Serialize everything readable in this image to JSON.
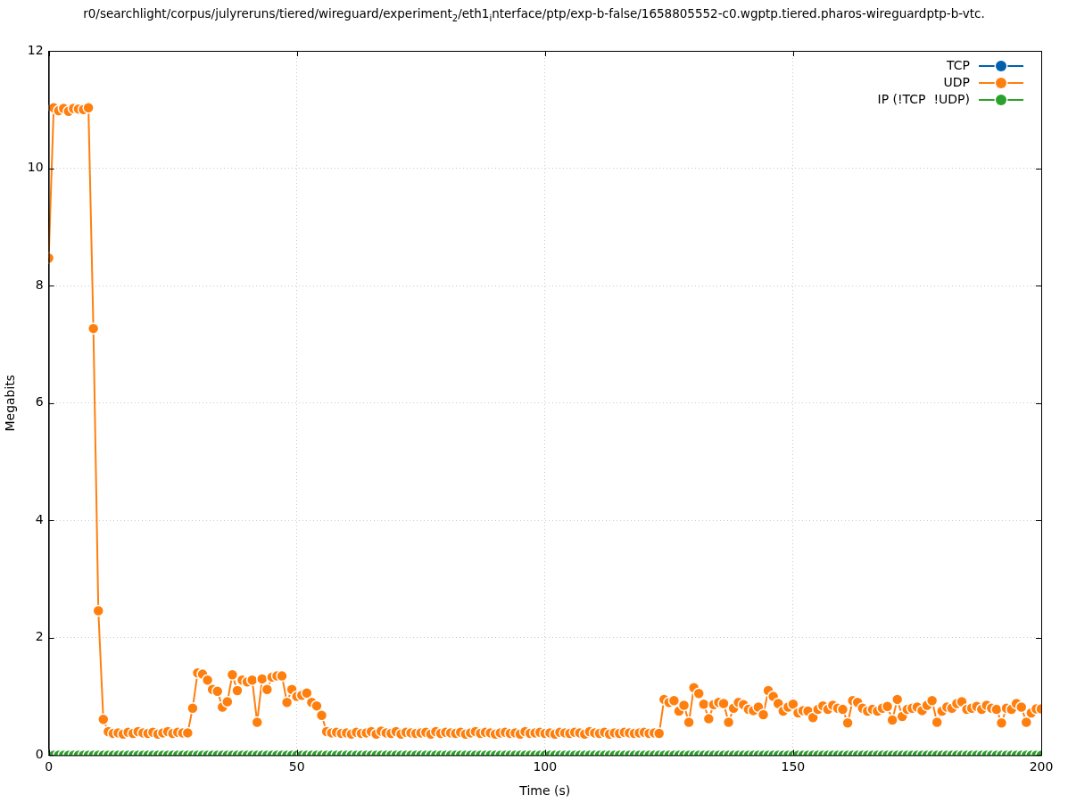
{
  "chart_data": {
    "type": "line",
    "title": "r0/searchlight/corpus/julyreruns/tiered/wireguard/experiment$_{2}$/eth1$_{i}$nterface/ptp/exp-b-false/1658805552-c0.wgptp.tiered.pharos-wireguardptp-b-vtc.",
    "xlabel": "Time (s)",
    "ylabel": "Megabits",
    "x": [
      0,
      1,
      2,
      3,
      4,
      5,
      6,
      7,
      8,
      9,
      10,
      11,
      12,
      13,
      14,
      15,
      16,
      17,
      18,
      19,
      20,
      21,
      22,
      23,
      24,
      25,
      26,
      27,
      28,
      29,
      30,
      31,
      32,
      33,
      34,
      35,
      36,
      37,
      38,
      39,
      40,
      41,
      42,
      43,
      44,
      45,
      46,
      47,
      48,
      49,
      50,
      51,
      52,
      53,
      54,
      55,
      56,
      57,
      58,
      59,
      60,
      61,
      62,
      63,
      64,
      65,
      66,
      67,
      68,
      69,
      70,
      71,
      72,
      73,
      74,
      75,
      76,
      77,
      78,
      79,
      80,
      81,
      82,
      83,
      84,
      85,
      86,
      87,
      88,
      89,
      90,
      91,
      92,
      93,
      94,
      95,
      96,
      97,
      98,
      99,
      100,
      101,
      102,
      103,
      104,
      105,
      106,
      107,
      108,
      109,
      110,
      111,
      112,
      113,
      114,
      115,
      116,
      117,
      118,
      119,
      120,
      121,
      122,
      123,
      124,
      125,
      126,
      127,
      128,
      129,
      130,
      131,
      132,
      133,
      134,
      135,
      136,
      137,
      138,
      139,
      140,
      141,
      142,
      143,
      144,
      145,
      146,
      147,
      148,
      149,
      150,
      151,
      152,
      153,
      154,
      155,
      156,
      157,
      158,
      159,
      160,
      161,
      162,
      163,
      164,
      165,
      166,
      167,
      168,
      169,
      170,
      171,
      172,
      173,
      174,
      175,
      176,
      177,
      178,
      179,
      180,
      181,
      182,
      183,
      184,
      185,
      186,
      187,
      188,
      189,
      190,
      191,
      192,
      193,
      194,
      195,
      196,
      197,
      198,
      199,
      200
    ],
    "series": [
      {
        "name": "TCP",
        "color": "#0060ad",
        "values": [
          null,
          null,
          null,
          null,
          null,
          null,
          null,
          null,
          null,
          null,
          null,
          null,
          null,
          null,
          null,
          null,
          null,
          null,
          null,
          null,
          null,
          null,
          null,
          null,
          null,
          null,
          null,
          null,
          null,
          null,
          null,
          null,
          null,
          null,
          null,
          null,
          null,
          null,
          null,
          null,
          null,
          null,
          null,
          null,
          null,
          null,
          null,
          null,
          null,
          null,
          null,
          null,
          null,
          null,
          null,
          null,
          null,
          null,
          null,
          null,
          null,
          null,
          null,
          null,
          null,
          null,
          null,
          null,
          null,
          null,
          null,
          null,
          null,
          null,
          null,
          null,
          null,
          null,
          null,
          null,
          null,
          null,
          null,
          null,
          null,
          null,
          null,
          null,
          null,
          null,
          null,
          null,
          null,
          null,
          null,
          null,
          null,
          null,
          null,
          null,
          null,
          null,
          null,
          null,
          null,
          null,
          null,
          null,
          null,
          null,
          null,
          null,
          null,
          null,
          null,
          null,
          null,
          null,
          null,
          null,
          null,
          null,
          null,
          null,
          null,
          null,
          null,
          null,
          null,
          null,
          null,
          null,
          null,
          null,
          null,
          null,
          null,
          null,
          null,
          null,
          null,
          null,
          null,
          null,
          null,
          null,
          null,
          null,
          null,
          null,
          null,
          null,
          null,
          null,
          null,
          null,
          null,
          null,
          null,
          null,
          null,
          null,
          null,
          null,
          null,
          null,
          null,
          null,
          null,
          null,
          null,
          null,
          null,
          null,
          null,
          null,
          null,
          null,
          null,
          null,
          null,
          null,
          null,
          null,
          null,
          null,
          null,
          null,
          null,
          null,
          null,
          null,
          null,
          null,
          null,
          null,
          null,
          null,
          null,
          null,
          null
        ]
      },
      {
        "name": "UDP",
        "color": "#ff7f0e",
        "values": [
          8.47,
          11.03,
          10.98,
          11.02,
          10.97,
          11.02,
          11.01,
          11.0,
          11.03,
          7.27,
          2.46,
          0.61,
          0.4,
          0.37,
          0.38,
          0.36,
          0.39,
          0.37,
          0.4,
          0.38,
          0.37,
          0.39,
          0.36,
          0.38,
          0.4,
          0.37,
          0.39,
          0.38,
          0.38,
          0.8,
          1.4,
          1.38,
          1.28,
          1.12,
          1.09,
          0.82,
          0.91,
          1.37,
          1.1,
          1.28,
          1.25,
          1.28,
          0.56,
          1.3,
          1.12,
          1.33,
          1.35,
          1.35,
          0.9,
          1.12,
          1.0,
          1.02,
          1.06,
          0.9,
          0.84,
          0.68,
          0.4,
          0.38,
          0.39,
          0.37,
          0.38,
          0.36,
          0.39,
          0.37,
          0.38,
          0.4,
          0.36,
          0.41,
          0.38,
          0.37,
          0.4,
          0.36,
          0.39,
          0.38,
          0.37,
          0.38,
          0.39,
          0.36,
          0.4,
          0.37,
          0.39,
          0.38,
          0.37,
          0.39,
          0.36,
          0.38,
          0.4,
          0.37,
          0.39,
          0.38,
          0.36,
          0.38,
          0.39,
          0.37,
          0.38,
          0.36,
          0.4,
          0.37,
          0.38,
          0.39,
          0.37,
          0.38,
          0.36,
          0.39,
          0.38,
          0.37,
          0.39,
          0.38,
          0.36,
          0.4,
          0.38,
          0.37,
          0.39,
          0.36,
          0.38,
          0.37,
          0.39,
          0.38,
          0.37,
          0.38,
          0.39,
          0.37,
          0.38,
          0.37,
          0.95,
          0.9,
          0.93,
          0.75,
          0.85,
          0.56,
          1.15,
          1.05,
          0.87,
          0.62,
          0.86,
          0.9,
          0.88,
          0.56,
          0.8,
          0.9,
          0.86,
          0.78,
          0.76,
          0.82,
          0.69,
          1.1,
          1.0,
          0.88,
          0.75,
          0.82,
          0.87,
          0.72,
          0.76,
          0.75,
          0.64,
          0.78,
          0.84,
          0.78,
          0.85,
          0.8,
          0.78,
          0.55,
          0.93,
          0.9,
          0.8,
          0.75,
          0.78,
          0.75,
          0.8,
          0.83,
          0.6,
          0.95,
          0.66,
          0.78,
          0.8,
          0.82,
          0.76,
          0.85,
          0.93,
          0.56,
          0.75,
          0.82,
          0.8,
          0.88,
          0.91,
          0.78,
          0.8,
          0.83,
          0.78,
          0.85,
          0.8,
          0.78,
          0.55,
          0.8,
          0.78,
          0.88,
          0.82,
          0.56,
          0.72,
          0.79,
          0.79
        ]
      },
      {
        "name": "IP (!TCP  !UDP)",
        "color": "#2ca02c",
        "values": [
          0,
          0,
          0,
          0,
          0,
          0,
          0,
          0,
          0,
          0,
          0,
          0,
          0,
          0,
          0,
          0,
          0,
          0,
          0,
          0,
          0,
          0,
          0,
          0,
          0,
          0,
          0,
          0,
          0,
          0,
          0,
          0,
          0,
          0,
          0,
          0,
          0,
          0,
          0,
          0,
          0,
          0,
          0,
          0,
          0,
          0,
          0,
          0,
          0,
          0,
          0,
          0,
          0,
          0,
          0,
          0,
          0,
          0,
          0,
          0,
          0,
          0,
          0,
          0,
          0,
          0,
          0,
          0,
          0,
          0,
          0,
          0,
          0,
          0,
          0,
          0,
          0,
          0,
          0,
          0,
          0,
          0,
          0,
          0,
          0,
          0,
          0,
          0,
          0,
          0,
          0,
          0,
          0,
          0,
          0,
          0,
          0,
          0,
          0,
          0,
          0,
          0,
          0,
          0,
          0,
          0,
          0,
          0,
          0,
          0,
          0,
          0,
          0,
          0,
          0,
          0,
          0,
          0,
          0,
          0,
          0,
          0,
          0,
          0,
          0,
          0,
          0,
          0,
          0,
          0,
          0,
          0,
          0,
          0,
          0,
          0,
          0,
          0,
          0,
          0,
          0,
          0,
          0,
          0,
          0,
          0,
          0,
          0,
          0,
          0,
          0,
          0,
          0,
          0,
          0,
          0,
          0,
          0,
          0,
          0,
          0,
          0,
          0,
          0,
          0,
          0,
          0,
          0,
          0,
          0,
          0,
          0,
          0,
          0,
          0,
          0,
          0,
          0,
          0,
          0,
          0,
          0,
          0,
          0,
          0,
          0,
          0,
          0,
          0,
          0,
          0,
          0,
          0,
          0,
          0,
          0,
          0,
          0,
          0,
          0,
          0
        ]
      }
    ],
    "xlim": [
      0,
      200
    ],
    "xticks": [
      0,
      50,
      100,
      150,
      200
    ],
    "ylim": [
      0,
      12
    ],
    "yticks": [
      0,
      2,
      4,
      6,
      8,
      10,
      12
    ],
    "grid": true,
    "legend": "top right",
    "marker": "circle",
    "line_style": "solid"
  }
}
